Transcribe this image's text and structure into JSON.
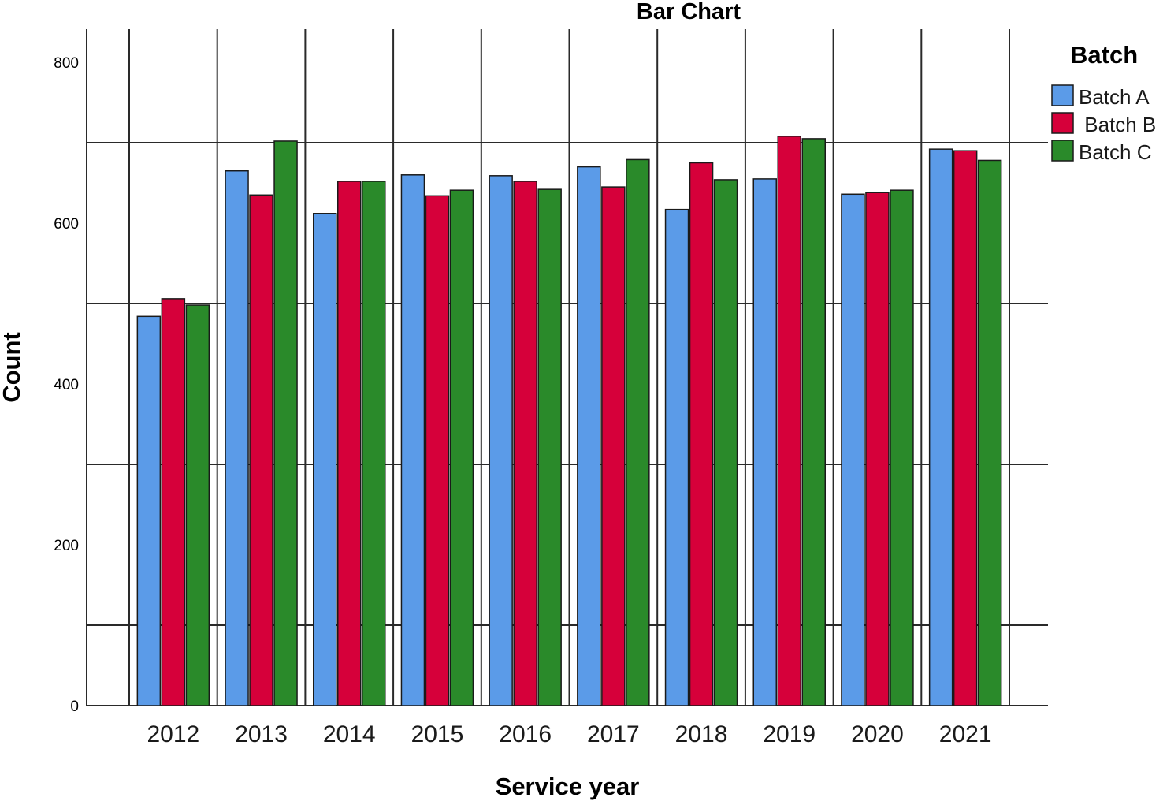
{
  "chart_data": {
    "type": "bar",
    "title": "Bar Chart",
    "xlabel": "Service year",
    "ylabel": "Count",
    "ylim": [
      0,
      800
    ],
    "yticks": [
      "0",
      "200",
      "400",
      "600",
      "800"
    ],
    "categories": [
      "2012",
      "2013",
      "2014",
      "2015",
      "2016",
      "2017",
      "2018",
      "2019",
      "2020",
      "2021"
    ],
    "grid": true,
    "legend": {
      "title": "Batch",
      "placement": "top-right"
    },
    "series": [
      {
        "name": "Batch A",
        "color": "#5b9be8",
        "values": [
          484,
          665,
          612,
          660,
          659,
          670,
          617,
          655,
          636,
          692
        ]
      },
      {
        "name": " Batch B",
        "color": "#d6003a",
        "values": [
          506,
          635,
          652,
          634,
          652,
          645,
          675,
          708,
          638,
          690
        ]
      },
      {
        "name": "Batch C",
        "color": "#2a8a2a",
        "values": [
          498,
          702,
          652,
          641,
          642,
          679,
          654,
          705,
          641,
          678
        ]
      }
    ]
  }
}
